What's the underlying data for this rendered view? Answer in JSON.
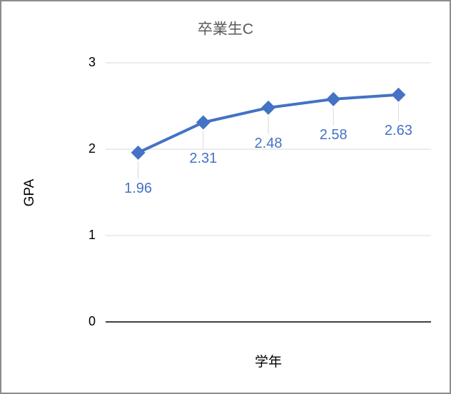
{
  "chart_data": {
    "type": "line",
    "title": "卒業生C",
    "xlabel": "学年",
    "ylabel": "GPA",
    "categories": [
      null,
      null,
      null,
      null,
      null
    ],
    "series": [
      {
        "name": "GPA",
        "color": "#4472c4",
        "values": [
          1.96,
          2.31,
          2.48,
          2.58,
          2.63
        ]
      }
    ],
    "ylim": [
      0,
      3
    ],
    "yticks": [
      0,
      1,
      2,
      3
    ],
    "grid": true,
    "data_labels": true
  }
}
